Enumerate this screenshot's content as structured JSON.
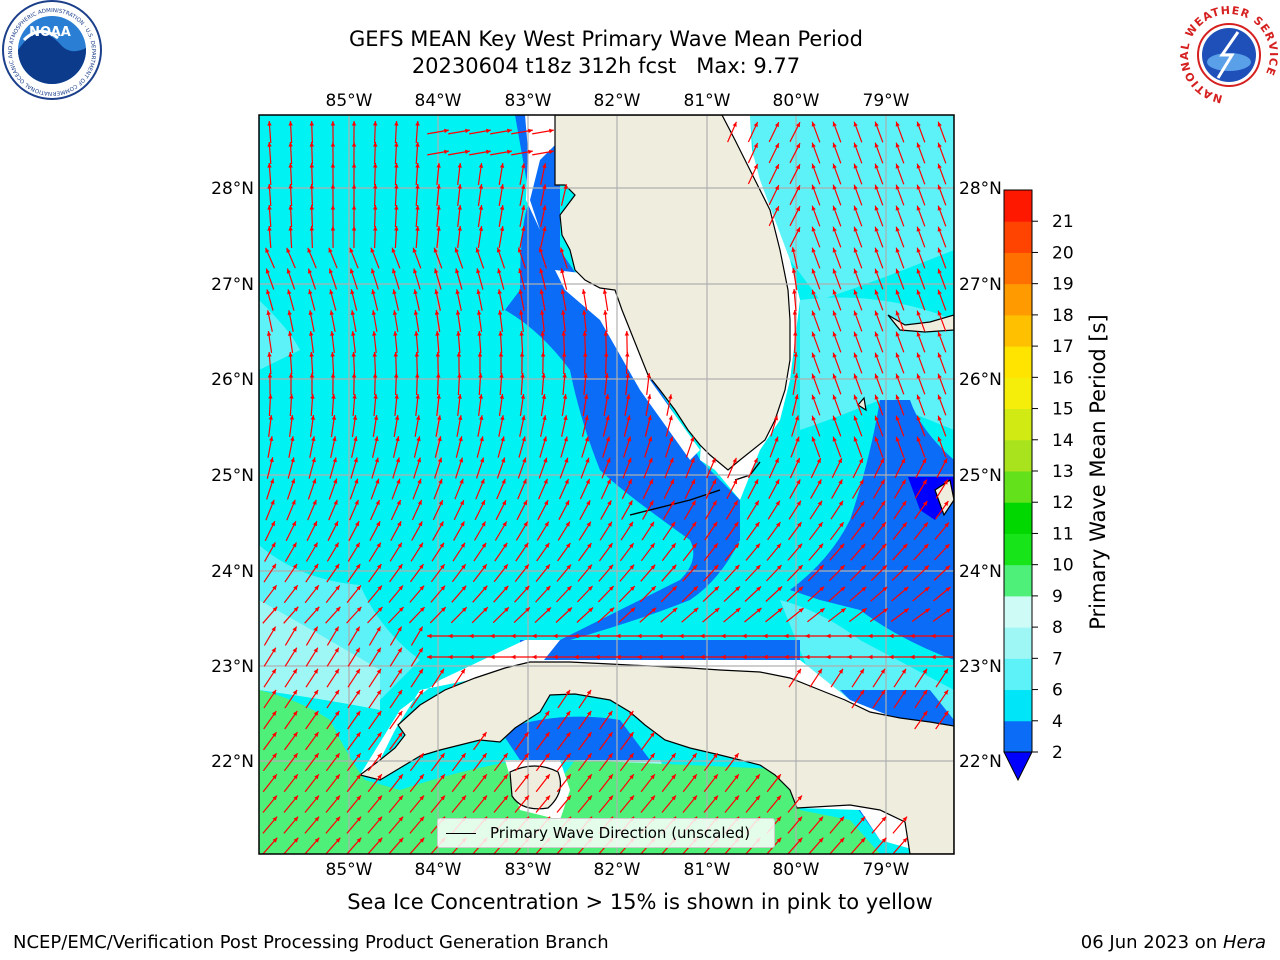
{
  "title_line1": "GEFS MEAN Key West Primary Wave Mean Period",
  "title_line2": "20230604 t18z 312h fcst   Max: 9.77",
  "logos": {
    "left": {
      "name": "NOAA",
      "icon": "noaa-logo",
      "text": "NOAA",
      "ring_text": "NATIONAL OCEANIC AND ATMOSPHERIC ADMINISTRATION · U.S. DEPARTMENT OF COMMERCE"
    },
    "right": {
      "name": "National Weather Service",
      "icon": "nws-logo",
      "ring_text": "NATIONAL WEATHER SERVICE"
    }
  },
  "map": {
    "lon_labels": [
      "85°W",
      "84°W",
      "83°W",
      "82°W",
      "81°W",
      "80°W",
      "79°W"
    ],
    "lat_labels": [
      "28°N",
      "27°N",
      "26°N",
      "25°N",
      "24°N",
      "23°N",
      "22°N"
    ],
    "land_color": "#efedde",
    "arrow_color": "#ff0000",
    "grid_color": "#b0b0b0",
    "legend_text": "Primary Wave Direction (unscaled)"
  },
  "colorbar": {
    "label": "Primary Wave Mean Period [s]",
    "ticks": [
      "2",
      "4",
      "6",
      "7",
      "8",
      "9",
      "10",
      "11",
      "12",
      "13",
      "14",
      "15",
      "16",
      "17",
      "18",
      "19",
      "20",
      "21"
    ],
    "colors": [
      "#0a6cf7",
      "#00e5f7",
      "#5cf2f7",
      "#9ef7f5",
      "#cffbf7",
      "#4ef07a",
      "#17e51a",
      "#00d800",
      "#63e21c",
      "#a8e31e",
      "#d1ea14",
      "#f4ee0a",
      "#ffe400",
      "#ffc000",
      "#ff9a00",
      "#ff7000",
      "#ff4300",
      "#ff1800"
    ],
    "under_color": "#0000ff"
  },
  "caption": "Sea Ice Concentration > 15% is shown in pink to yellow",
  "footer_left": "NCEP/EMC/Verification Post Processing Product Generation Branch",
  "footer_right_prefix": "06 Jun 2023 on ",
  "footer_right_host": "Hera"
}
